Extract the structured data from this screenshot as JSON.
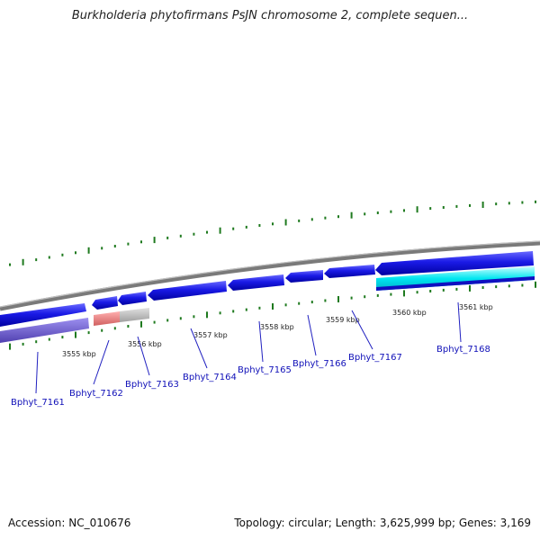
{
  "title": "Burkholderia phytofirmans PsJN chromosome 2, complete sequen...",
  "footer": {
    "accession": "Accession: NC_010676",
    "summary": "Topology: circular; Length: 3,625,999 bp; Genes: 3,169"
  },
  "scale": {
    "ticks": [
      "3555 kbp",
      "3556 kbp",
      "3557 kbp",
      "3558 kbp",
      "3559 kbp",
      "3560 kbp",
      "3561 kbp"
    ]
  },
  "genes": [
    {
      "id": "Bphyt_7161",
      "strand": "-"
    },
    {
      "id": "Bphyt_7162",
      "strand": "-"
    },
    {
      "id": "Bphyt_7163",
      "strand": "-"
    },
    {
      "id": "Bphyt_7164",
      "strand": "-"
    },
    {
      "id": "Bphyt_7165",
      "strand": "-"
    },
    {
      "id": "Bphyt_7166",
      "strand": "-"
    },
    {
      "id": "Bphyt_7167",
      "strand": "-"
    },
    {
      "id": "Bphyt_7168",
      "strand": "-"
    }
  ],
  "colors": {
    "gene": "#1a1ae0",
    "gene_pseudo": "#e06060",
    "backbone": "#8a8a8a",
    "gc_skew": "#1f7a1f",
    "highlight": "#00e0e0",
    "track_lower": "#7060d0"
  }
}
